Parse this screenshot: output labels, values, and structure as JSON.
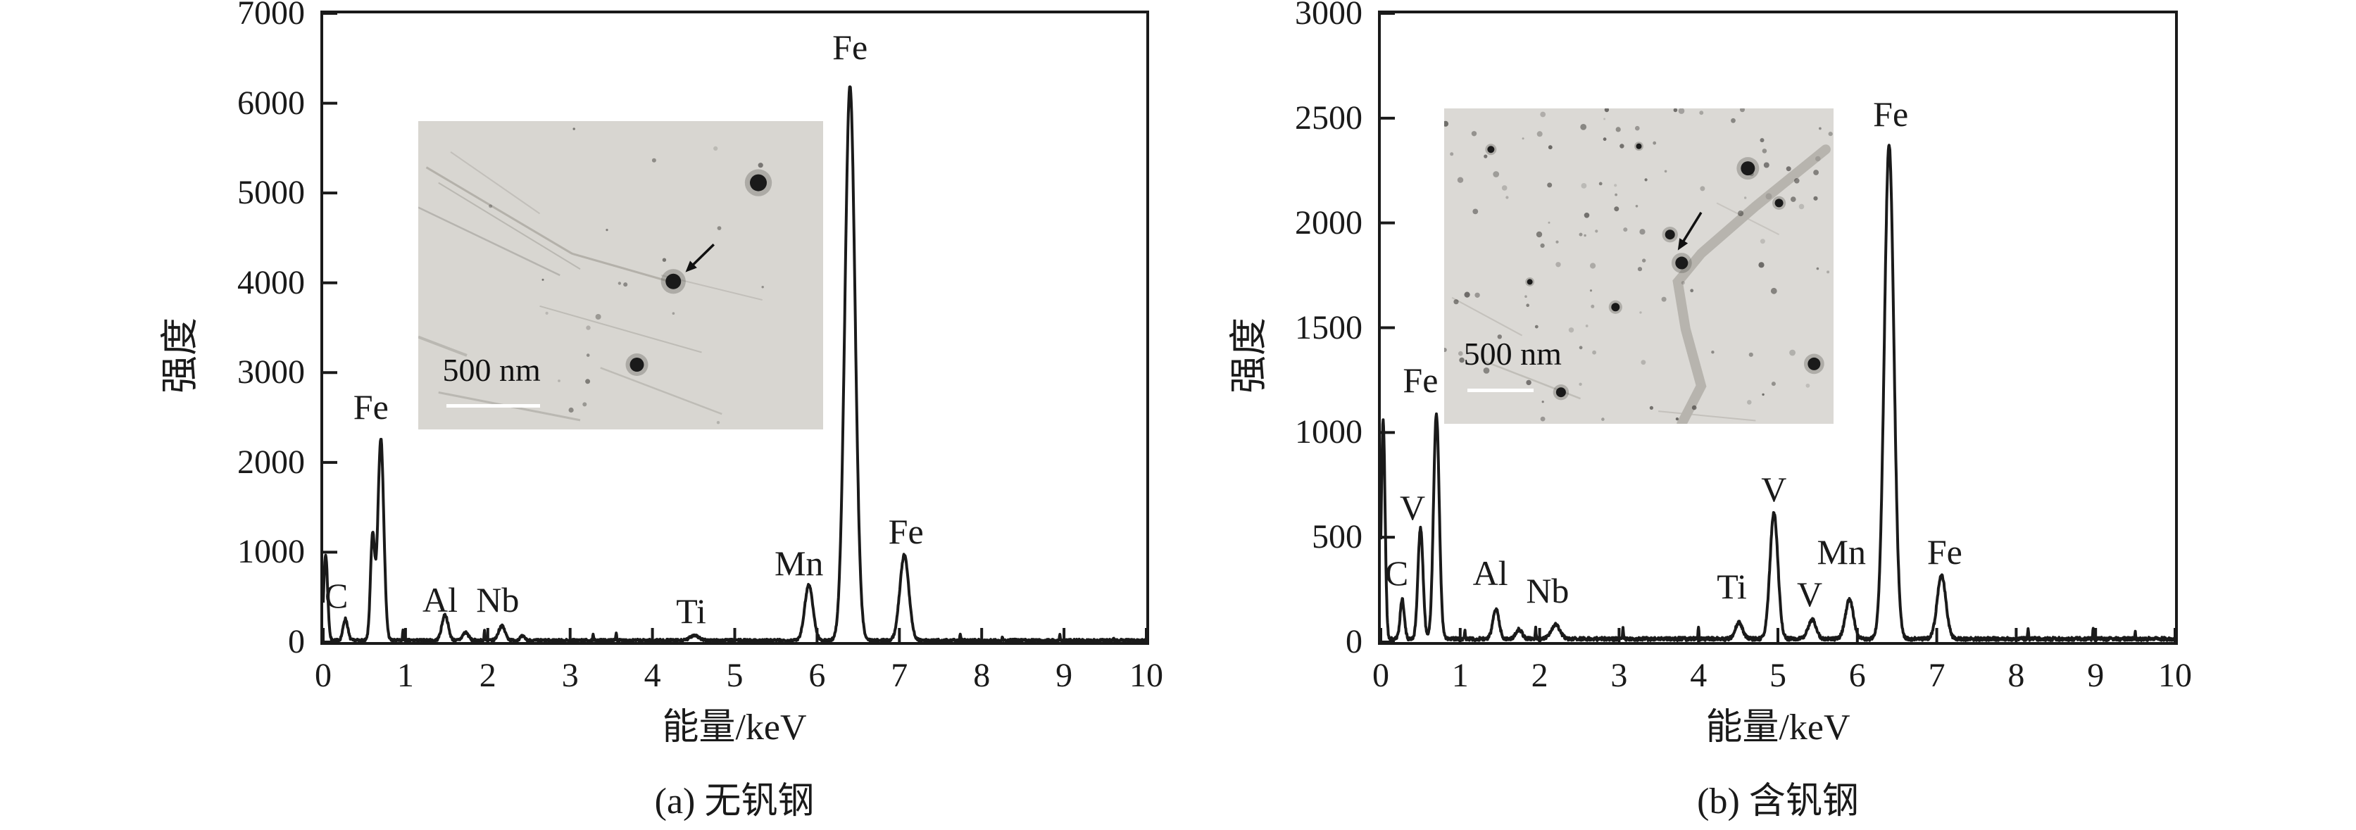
{
  "figure": {
    "background": "#ffffff",
    "line_color": "#1a1a1a",
    "inset_border": "none"
  },
  "chart_data": [
    {
      "panel": "a",
      "type": "line",
      "caption": "(a) 无钒钢",
      "xlabel": "能量/keV",
      "ylabel": "强度",
      "xlim": [
        0,
        10
      ],
      "ylim": [
        0,
        7000
      ],
      "x_ticks": [
        0,
        1,
        2,
        3,
        4,
        5,
        6,
        7,
        8,
        9,
        10
      ],
      "y_ticks": [
        0,
        1000,
        2000,
        3000,
        4000,
        5000,
        6000,
        7000
      ],
      "grid": false,
      "legend": "none",
      "baseline_counts": 18,
      "noise_amplitude": 14,
      "seed": 7,
      "peaks": [
        [
          0.03,
          950,
          0.024
        ],
        [
          0.27,
          240,
          0.028
        ],
        [
          0.6,
          1150,
          0.026
        ],
        [
          0.7,
          2250,
          0.036
        ],
        [
          0.97,
          120,
          0.005
        ],
        [
          1.48,
          285,
          0.038
        ],
        [
          1.73,
          90,
          0.035
        ],
        [
          1.96,
          115,
          0.005
        ],
        [
          2.17,
          160,
          0.04
        ],
        [
          2.42,
          45,
          0.03
        ],
        [
          3.28,
          60,
          0.005
        ],
        [
          3.56,
          95,
          0.005
        ],
        [
          4.51,
          60,
          0.05
        ],
        [
          5.9,
          620,
          0.05
        ],
        [
          6.4,
          6170,
          0.062
        ],
        [
          7.06,
          950,
          0.055
        ],
        [
          7.74,
          65,
          0.005
        ],
        [
          8.25,
          50,
          0.005
        ],
        [
          8.95,
          55,
          0.005
        ],
        [
          9.6,
          35,
          0.005
        ]
      ],
      "peak_labels": [
        {
          "text": "C",
          "kev": 0.16,
          "counts": 520
        },
        {
          "text": "Fe",
          "kev": 0.58,
          "counts": 2620
        },
        {
          "text": "Al",
          "kev": 1.42,
          "counts": 470
        },
        {
          "text": "Nb",
          "kev": 2.12,
          "counts": 470
        },
        {
          "text": "Ti",
          "kev": 4.47,
          "counts": 345
        },
        {
          "text": "Mn",
          "kev": 5.78,
          "counts": 880
        },
        {
          "text": "Fe",
          "kev": 6.4,
          "counts": 6620
        },
        {
          "text": "Fe",
          "kev": 7.08,
          "counts": 1230
        }
      ],
      "inset": {
        "description": "TEM micrograph of vanadium-free steel",
        "scale_label": "500 nm",
        "bg": "#d8d6d1",
        "speck_count": 22,
        "speck_seed": 11,
        "speck_rmax": 4,
        "streaks": [
          [
            2,
            15,
            38,
            43,
            3,
            0.5
          ],
          [
            5,
            20,
            40,
            48,
            2,
            0.4
          ],
          [
            0,
            28,
            35,
            50,
            2.5,
            0.45
          ],
          [
            8,
            10,
            30,
            30,
            2,
            0.3
          ],
          [
            38,
            43,
            62,
            52,
            3,
            0.5
          ],
          [
            30,
            60,
            70,
            75,
            2,
            0.35
          ],
          [
            5,
            88,
            40,
            97,
            3,
            0.4
          ],
          [
            45,
            80,
            75,
            95,
            2.5,
            0.35
          ],
          [
            60,
            50,
            85,
            58,
            2,
            0.3
          ],
          [
            0,
            70,
            12,
            76,
            4,
            0.4
          ]
        ],
        "band": null,
        "particles": [
          [
            84,
            20,
            12
          ],
          [
            63,
            52,
            11
          ],
          [
            54,
            79,
            10
          ]
        ],
        "arrow": {
          "tail": [
            73,
            40
          ],
          "tip": [
            66,
            49
          ]
        }
      }
    },
    {
      "panel": "b",
      "type": "line",
      "caption": "(b) 含钒钢",
      "xlabel": "能量/keV",
      "ylabel": "强度",
      "xlim": [
        0,
        10
      ],
      "ylim": [
        0,
        3000
      ],
      "x_ticks": [
        0,
        1,
        2,
        3,
        4,
        5,
        6,
        7,
        8,
        9,
        10
      ],
      "y_ticks": [
        0,
        500,
        1000,
        1500,
        2000,
        2500,
        3000
      ],
      "grid": false,
      "legend": "none",
      "baseline_counts": 15,
      "noise_amplitude": 8,
      "seed": 21,
      "peaks": [
        [
          0.03,
          1040,
          0.024
        ],
        [
          0.27,
          190,
          0.026
        ],
        [
          0.5,
          530,
          0.032
        ],
        [
          0.7,
          1075,
          0.036
        ],
        [
          1.06,
          40,
          0.005
        ],
        [
          1.45,
          145,
          0.038
        ],
        [
          1.74,
          45,
          0.04
        ],
        [
          1.95,
          55,
          0.005
        ],
        [
          2.2,
          68,
          0.055
        ],
        [
          3.05,
          55,
          0.005
        ],
        [
          4.0,
          60,
          0.005
        ],
        [
          4.51,
          78,
          0.045
        ],
        [
          4.95,
          600,
          0.05
        ],
        [
          5.43,
          92,
          0.05
        ],
        [
          5.9,
          188,
          0.05
        ],
        [
          6.4,
          2360,
          0.06
        ],
        [
          7.06,
          305,
          0.055
        ],
        [
          8.15,
          48,
          0.005
        ],
        [
          8.97,
          58,
          0.005
        ],
        [
          9.5,
          30,
          0.005
        ]
      ],
      "peak_labels": [
        {
          "text": "C",
          "kev": 0.2,
          "counts": 330
        },
        {
          "text": "V",
          "kev": 0.4,
          "counts": 640
        },
        {
          "text": "Fe",
          "kev": 0.5,
          "counts": 1250
        },
        {
          "text": "Al",
          "kev": 1.38,
          "counts": 330
        },
        {
          "text": "Nb",
          "kev": 2.1,
          "counts": 245
        },
        {
          "text": "Ti",
          "kev": 4.42,
          "counts": 265
        },
        {
          "text": "V",
          "kev": 4.95,
          "counts": 730
        },
        {
          "text": "V",
          "kev": 5.4,
          "counts": 230
        },
        {
          "text": "Mn",
          "kev": 5.8,
          "counts": 430
        },
        {
          "text": "Fe",
          "kev": 6.42,
          "counts": 2520
        },
        {
          "text": "Fe",
          "kev": 7.1,
          "counts": 430
        }
      ],
      "inset": {
        "description": "TEM micrograph of vanadium-containing steel",
        "scale_label": "500 nm",
        "bg": "#dbd9d5",
        "speck_count": 110,
        "speck_seed": 5,
        "speck_rmax": 4.5,
        "streaks": [
          [
            2,
            60,
            20,
            72,
            2,
            0.3
          ],
          [
            10,
            80,
            35,
            92,
            2.5,
            0.35
          ],
          [
            55,
            96,
            80,
            99,
            2,
            0.3
          ],
          [
            70,
            30,
            86,
            40,
            2,
            0.25
          ]
        ],
        "band": {
          "points": [
            [
              98,
              13
            ],
            [
              80,
              31
            ],
            [
              66,
              46
            ],
            [
              60,
              55
            ],
            [
              62,
              70
            ],
            [
              66,
              88
            ],
            [
              61,
              100
            ]
          ],
          "width": 14,
          "color": "#b7b4ae"
        },
        "particles": [
          [
            58,
            40,
            7
          ],
          [
            61,
            49,
            9
          ],
          [
            78,
            19,
            10
          ],
          [
            95,
            81,
            9
          ],
          [
            30,
            90,
            7
          ],
          [
            12,
            13,
            5
          ],
          [
            44,
            63,
            6
          ],
          [
            22,
            55,
            4
          ],
          [
            86,
            30,
            6
          ],
          [
            50,
            12,
            4
          ]
        ],
        "arrow": {
          "tail": [
            66,
            33
          ],
          "tip": [
            60,
            45
          ]
        }
      }
    }
  ]
}
